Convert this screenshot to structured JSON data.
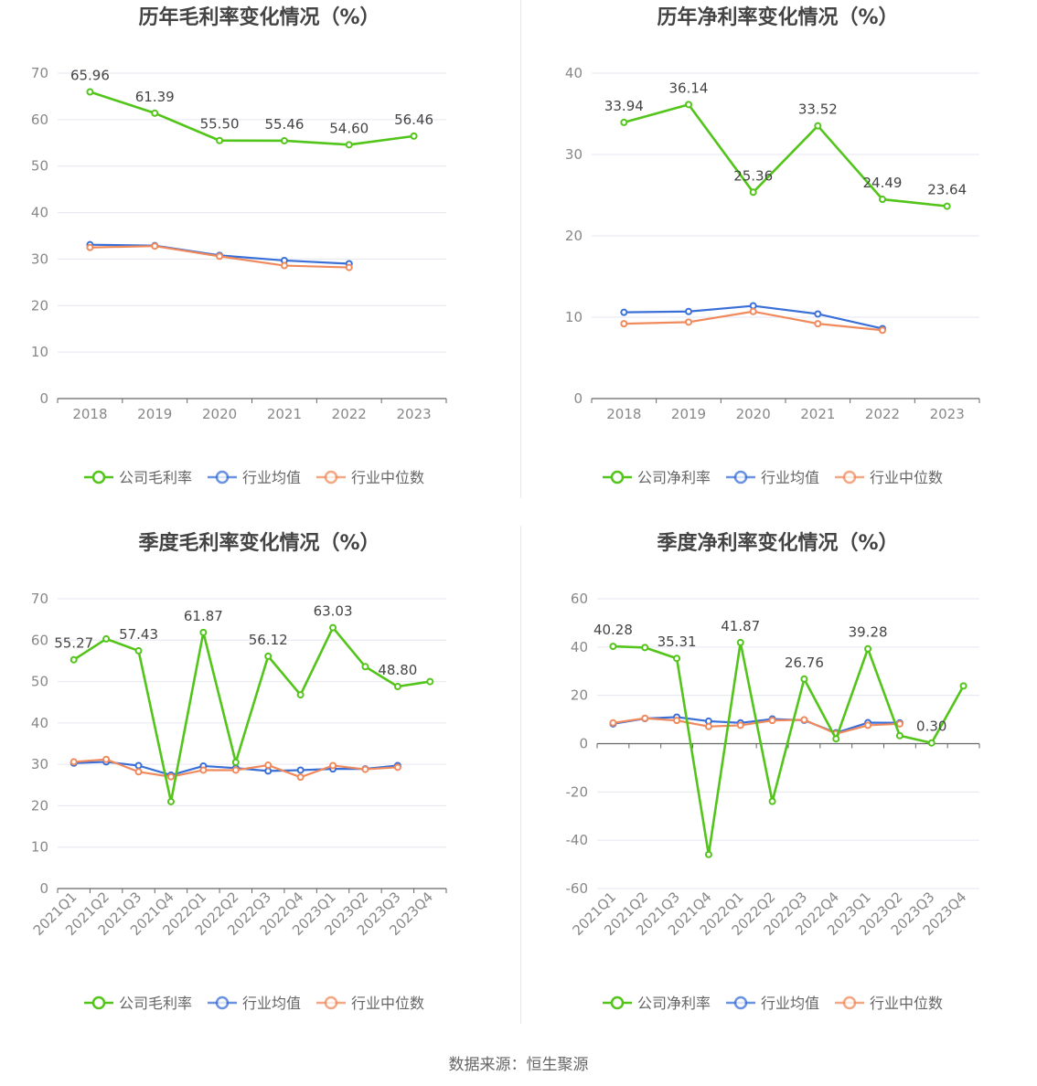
{
  "legend_labels": {
    "company_gross": "公司毛利率",
    "company_net": "公司净利率",
    "avg": "行业均值",
    "median": "行业中位数"
  },
  "colors": {
    "company": "#52c41a",
    "avg": "#3a6fd8",
    "median": "#f08a5d",
    "grid": "#e6e6f0",
    "axis": "#666666"
  },
  "source": "数据来源：恒生聚源",
  "chart_data": [
    {
      "id": "annual-gross",
      "type": "line",
      "title": "历年毛利率变化情况（%）",
      "categories": [
        "2018",
        "2019",
        "2020",
        "2021",
        "2022",
        "2023"
      ],
      "ylim": [
        0,
        70
      ],
      "yticks": [
        0,
        10,
        20,
        30,
        40,
        50,
        60,
        70
      ],
      "series": [
        {
          "name": "公司毛利率",
          "key": "company",
          "values": [
            65.96,
            61.39,
            55.5,
            55.46,
            54.6,
            56.46
          ],
          "labels": [
            "65.96",
            "61.39",
            "55.50",
            "55.46",
            "54.60",
            "56.46"
          ]
        },
        {
          "name": "行业均值",
          "key": "avg",
          "values": [
            33.1,
            32.9,
            30.8,
            29.7,
            29.0,
            null
          ]
        },
        {
          "name": "行业中位数",
          "key": "median",
          "values": [
            32.5,
            32.8,
            30.6,
            28.6,
            28.2,
            null
          ]
        }
      ]
    },
    {
      "id": "annual-net",
      "type": "line",
      "title": "历年净利率变化情况（%）",
      "categories": [
        "2018",
        "2019",
        "2020",
        "2021",
        "2022",
        "2023"
      ],
      "ylim": [
        0,
        40
      ],
      "yticks": [
        0,
        10,
        20,
        30,
        40
      ],
      "series": [
        {
          "name": "公司净利率",
          "key": "company",
          "values": [
            33.94,
            36.14,
            25.36,
            33.52,
            24.49,
            23.64
          ],
          "labels": [
            "33.94",
            "36.14",
            "25.36",
            "33.52",
            "24.49",
            "23.64"
          ]
        },
        {
          "name": "行业均值",
          "key": "avg",
          "values": [
            10.6,
            10.7,
            11.4,
            10.4,
            8.6,
            null
          ]
        },
        {
          "name": "行业中位数",
          "key": "median",
          "values": [
            9.2,
            9.4,
            10.7,
            9.2,
            8.4,
            null
          ]
        }
      ]
    },
    {
      "id": "quarterly-gross",
      "type": "line",
      "title": "季度毛利率变化情况（%）",
      "categories": [
        "2021Q1",
        "2021Q2",
        "2021Q3",
        "2021Q4",
        "2022Q1",
        "2022Q2",
        "2022Q3",
        "2022Q4",
        "2023Q1",
        "2023Q2",
        "2023Q3",
        "2023Q4"
      ],
      "ylim": [
        0,
        70
      ],
      "yticks": [
        0,
        10,
        20,
        30,
        40,
        50,
        60,
        70
      ],
      "series": [
        {
          "name": "公司毛利率",
          "key": "company",
          "values": [
            55.27,
            60.3,
            57.43,
            21.0,
            61.87,
            30.5,
            56.12,
            46.8,
            63.03,
            53.6,
            48.8,
            50.0
          ],
          "labels": [
            "55.27",
            null,
            "57.43",
            null,
            "61.87",
            null,
            "56.12",
            null,
            "63.03",
            null,
            "48.80",
            null
          ]
        },
        {
          "name": "行业均值",
          "key": "avg",
          "values": [
            30.3,
            30.6,
            29.7,
            27.4,
            29.6,
            29.1,
            28.4,
            28.6,
            28.9,
            28.9,
            29.7,
            null
          ]
        },
        {
          "name": "行业中位数",
          "key": "median",
          "values": [
            30.6,
            31.2,
            28.2,
            27.0,
            28.6,
            28.6,
            29.8,
            26.9,
            29.7,
            28.8,
            29.3,
            null
          ]
        }
      ]
    },
    {
      "id": "quarterly-net",
      "type": "line",
      "title": "季度净利率变化情况（%）",
      "categories": [
        "2021Q1",
        "2021Q2",
        "2021Q3",
        "2021Q4",
        "2022Q1",
        "2022Q2",
        "2022Q3",
        "2022Q4",
        "2023Q1",
        "2023Q2",
        "2023Q3",
        "2023Q4"
      ],
      "ylim": [
        -60,
        60
      ],
      "yticks": [
        -60,
        -40,
        -20,
        0,
        20,
        40,
        60
      ],
      "series": [
        {
          "name": "公司净利率",
          "key": "company",
          "values": [
            40.28,
            39.8,
            35.31,
            -45.9,
            41.87,
            -23.9,
            26.76,
            2.0,
            39.28,
            3.3,
            0.3,
            23.9
          ],
          "labels": [
            "40.28",
            null,
            "35.31",
            null,
            "41.87",
            null,
            "26.76",
            null,
            "39.28",
            null,
            "0.30",
            null
          ]
        },
        {
          "name": "行业均值",
          "key": "avg",
          "values": [
            8.2,
            10.4,
            11.0,
            9.3,
            8.6,
            10.2,
            9.7,
            4.5,
            8.7,
            8.6,
            null,
            null
          ]
        },
        {
          "name": "行业中位数",
          "key": "median",
          "values": [
            8.6,
            10.5,
            9.6,
            7.1,
            7.6,
            9.6,
            9.9,
            4.1,
            7.6,
            8.2,
            null,
            null
          ]
        }
      ]
    }
  ]
}
